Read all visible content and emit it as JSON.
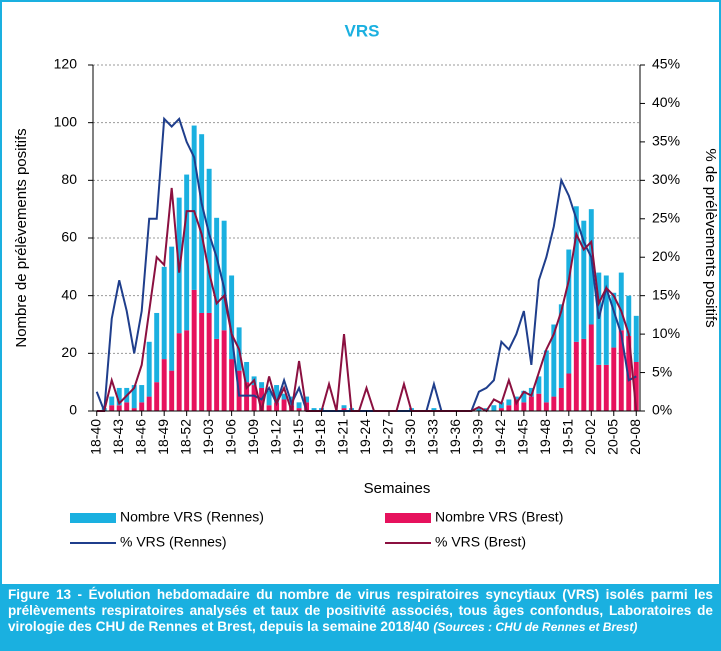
{
  "chart_data": {
    "type": "bar",
    "title": "VRS",
    "x_label": "Semaines",
    "y_label": "Nombre de prélèvements positifs",
    "y2_label": "% de prélèvements positifs",
    "categories": [
      "18-40",
      null,
      null,
      "18-43",
      null,
      null,
      "18-46",
      null,
      null,
      "18-49",
      null,
      null,
      "18-52",
      null,
      null,
      "19-03",
      null,
      null,
      "19-06",
      null,
      null,
      "19-09",
      null,
      null,
      "19-12",
      null,
      null,
      "19-15",
      null,
      null,
      "19-18",
      null,
      null,
      "19-21",
      null,
      null,
      "19-24",
      null,
      null,
      "19-27",
      null,
      null,
      "19-30",
      null,
      null,
      "19-33",
      null,
      null,
      "19-36",
      null,
      null,
      "19-39",
      null,
      null,
      "19-42",
      null,
      null,
      "19-45",
      null,
      null,
      "19-48",
      null,
      null,
      "19-51",
      null,
      null,
      "20-02",
      null,
      null,
      "20-05",
      null,
      null,
      "20-08"
    ],
    "series": [
      {
        "name": "Nombre VRS (Rennes)",
        "type": "bar",
        "color": "#1ab0e0",
        "values": [
          0,
          1,
          3,
          6,
          5,
          8,
          6,
          19,
          24,
          32,
          43,
          47,
          54,
          57,
          62,
          50,
          42,
          38,
          29,
          15,
          7,
          3,
          2,
          5,
          6,
          2,
          3,
          2,
          2,
          1,
          1,
          0,
          0,
          1,
          1,
          0,
          0,
          0,
          0,
          0,
          0,
          0,
          1,
          0,
          0,
          1,
          0,
          0,
          0,
          0,
          0,
          1,
          1,
          2,
          2,
          2,
          1,
          4,
          3,
          6,
          18,
          25,
          29,
          43,
          47,
          41,
          40,
          32,
          31,
          19,
          20,
          14,
          16
        ]
      },
      {
        "name": "Nombre VRS (Brest)",
        "type": "bar",
        "color": "#e6125d",
        "values": [
          0,
          0,
          2,
          2,
          3,
          1,
          3,
          5,
          10,
          18,
          14,
          27,
          28,
          42,
          34,
          34,
          25,
          28,
          18,
          14,
          10,
          9,
          8,
          2,
          3,
          4,
          2,
          1,
          3,
          0,
          0,
          0,
          0,
          1,
          0,
          0,
          0,
          0,
          0,
          0,
          0,
          0,
          0,
          0,
          0,
          0,
          0,
          0,
          0,
          0,
          0,
          0,
          0,
          0,
          1,
          2,
          4,
          3,
          5,
          6,
          3,
          5,
          8,
          13,
          24,
          25,
          30,
          16,
          16,
          22,
          28,
          26,
          17
        ]
      },
      {
        "name": "% VRS (Rennes)",
        "type": "line",
        "axis": "y2",
        "color": "#1f3e8c",
        "values": [
          2.5,
          0,
          12,
          17,
          13,
          7.5,
          13,
          25,
          25,
          38,
          37,
          38,
          35,
          33,
          27,
          23,
          20,
          16,
          10,
          2,
          2,
          2,
          1.5,
          3,
          1,
          4,
          1,
          3,
          0,
          0,
          0,
          0,
          0,
          0,
          0,
          0,
          0,
          0,
          0,
          0,
          0,
          0,
          0,
          0,
          0,
          3.5,
          0,
          0,
          0,
          0,
          0,
          2.5,
          3,
          4,
          9,
          8,
          10,
          13,
          6,
          17,
          20,
          24,
          30,
          28,
          25,
          22,
          20,
          12,
          16,
          13,
          10,
          4,
          4.5
        ]
      },
      {
        "name": "% VRS (Brest)",
        "type": "line",
        "axis": "y2",
        "color": "#8b1040",
        "values": [
          0,
          0,
          4,
          1,
          2,
          3,
          6,
          13,
          20,
          19,
          29,
          18,
          26,
          26,
          23,
          18,
          14,
          15,
          10,
          8,
          3,
          4,
          0,
          4.5,
          1,
          3,
          0,
          6.5,
          0,
          0,
          0,
          3.5,
          0,
          10,
          0,
          0,
          3,
          0,
          0,
          0,
          0,
          3.5,
          0,
          0,
          0,
          0,
          0,
          0,
          0,
          0,
          0,
          0.5,
          0,
          1.5,
          1,
          4,
          1,
          2.5,
          2,
          5,
          8,
          10,
          13,
          17,
          23,
          21,
          22,
          14,
          16,
          15,
          13,
          10,
          0
        ]
      }
    ],
    "ylim": [
      0,
      120
    ],
    "yticks": [
      0,
      20,
      40,
      60,
      80,
      100,
      120
    ],
    "y2lim": [
      0,
      45
    ],
    "y2ticks": [
      {
        "value": 0,
        "label": "0%"
      },
      {
        "value": 5,
        "label": "5%"
      },
      {
        "value": 10,
        "label": "10%"
      },
      {
        "value": 15,
        "label": "15%"
      },
      {
        "value": 20,
        "label": "20%"
      },
      {
        "value": 25,
        "label": "25%"
      },
      {
        "value": 30,
        "label": "30%"
      },
      {
        "value": 35,
        "label": "35%"
      },
      {
        "value": 40,
        "label": "40%"
      },
      {
        "value": 45,
        "label": "45%"
      }
    ],
    "grid": true
  },
  "figure_caption": {
    "text": "Figure 13 - Évolution hebdomadaire du nombre de virus respiratoires syncytiaux (VRS) isolés parmi les prélèvements respiratoires analysés et taux de positivité associés, tous âges confondus, Laboratoires de virologie des CHU de Rennes et Brest, depuis la semaine 2018/40",
    "source": "(Sources : CHU de Rennes et Brest)"
  }
}
